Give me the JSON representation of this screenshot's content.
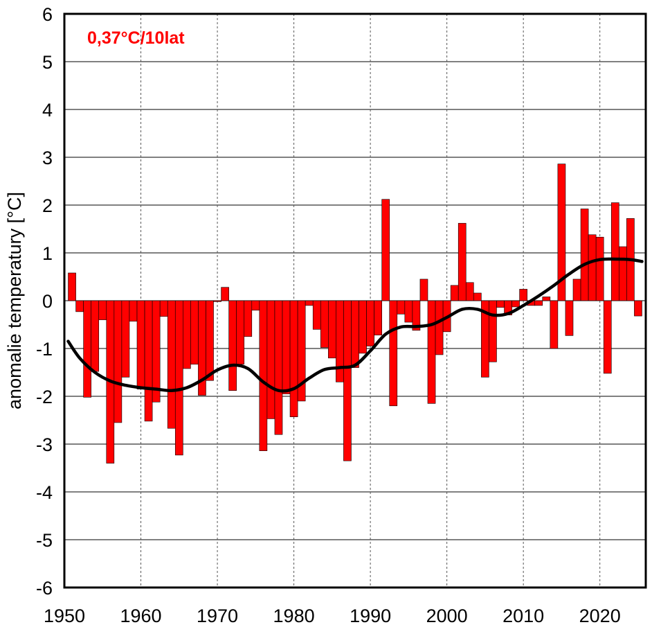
{
  "chart_data": {
    "type": "bar",
    "title": "",
    "annotation": "0,37°C/10lat",
    "xlabel": "",
    "ylabel": "anomalie temperatury [°C]",
    "xlim": [
      1950,
      2026
    ],
    "ylim": [
      -6,
      6
    ],
    "xticks": [
      "1950",
      "1960",
      "1970",
      "1980",
      "1990",
      "2000",
      "2010",
      "2020"
    ],
    "yticks": [
      "-6",
      "-5",
      "-4",
      "-3",
      "-2",
      "-1",
      "0",
      "1",
      "2",
      "3",
      "4",
      "5",
      "6"
    ],
    "grid": true,
    "bar_color": "#ff0000",
    "line_color": "#000000",
    "annotation_color": "#ff0000",
    "series": [
      {
        "type": "bar",
        "x": [
          1951,
          1952,
          1953,
          1954,
          1955,
          1956,
          1957,
          1958,
          1959,
          1960,
          1961,
          1962,
          1963,
          1964,
          1965,
          1966,
          1967,
          1968,
          1969,
          1970,
          1971,
          1972,
          1973,
          1974,
          1975,
          1976,
          1977,
          1978,
          1979,
          1980,
          1981,
          1982,
          1983,
          1984,
          1985,
          1986,
          1987,
          1988,
          1989,
          1990,
          1991,
          1992,
          1993,
          1994,
          1995,
          1996,
          1997,
          1998,
          1999,
          2000,
          2001,
          2002,
          2003,
          2004,
          2005,
          2006,
          2007,
          2008,
          2009,
          2010,
          2011,
          2012,
          2013,
          2014,
          2015,
          2016,
          2017,
          2018,
          2019,
          2020,
          2021,
          2022,
          2023,
          2024,
          2025
        ],
        "values": [
          0.58,
          -0.23,
          -2.02,
          -1.48,
          -0.4,
          -3.4,
          -2.55,
          -1.6,
          -0.43,
          -1.85,
          -2.52,
          -2.12,
          -0.33,
          -2.67,
          -3.23,
          -1.42,
          -1.33,
          -1.98,
          -1.67,
          -0.02,
          0.28,
          -1.88,
          -1.33,
          -0.75,
          -0.2,
          -3.14,
          -2.47,
          -2.8,
          -1.95,
          -2.43,
          -2.1,
          -0.1,
          -0.6,
          -0.98,
          -1.2,
          -1.7,
          -3.35,
          -1.4,
          -1.1,
          -0.95,
          -0.72,
          2.12,
          -2.2,
          -0.28,
          -0.45,
          -0.62,
          0.45,
          -2.15,
          -1.13,
          -0.65,
          0.32,
          1.62,
          0.38,
          0.16,
          -1.6,
          -1.28,
          -0.14,
          -0.3,
          -0.13,
          0.24,
          -0.1,
          -0.1,
          0.08,
          -1.0,
          2.86,
          -0.73,
          0.45,
          1.92,
          1.38,
          1.33,
          -1.52,
          2.05,
          1.13,
          1.72,
          -0.32
        ]
      },
      {
        "type": "line",
        "x": [
          1950.5,
          1952,
          1954,
          1956,
          1958,
          1960,
          1962,
          1964,
          1966,
          1968,
          1970,
          1972,
          1974,
          1976,
          1978,
          1980,
          1982,
          1984,
          1986,
          1988,
          1990,
          1992,
          1994,
          1996,
          1998,
          2000,
          2002,
          2004,
          2006,
          2008,
          2010,
          2012,
          2014,
          2016,
          2018,
          2020,
          2022,
          2024,
          2025.5
        ],
        "values": [
          -0.85,
          -1.2,
          -1.5,
          -1.68,
          -1.77,
          -1.82,
          -1.85,
          -1.88,
          -1.82,
          -1.66,
          -1.45,
          -1.35,
          -1.42,
          -1.7,
          -1.88,
          -1.84,
          -1.62,
          -1.44,
          -1.4,
          -1.35,
          -1.05,
          -0.7,
          -0.55,
          -0.54,
          -0.5,
          -0.35,
          -0.18,
          -0.18,
          -0.3,
          -0.27,
          -0.1,
          0.1,
          0.32,
          0.56,
          0.76,
          0.86,
          0.87,
          0.86,
          0.82
        ]
      }
    ]
  }
}
